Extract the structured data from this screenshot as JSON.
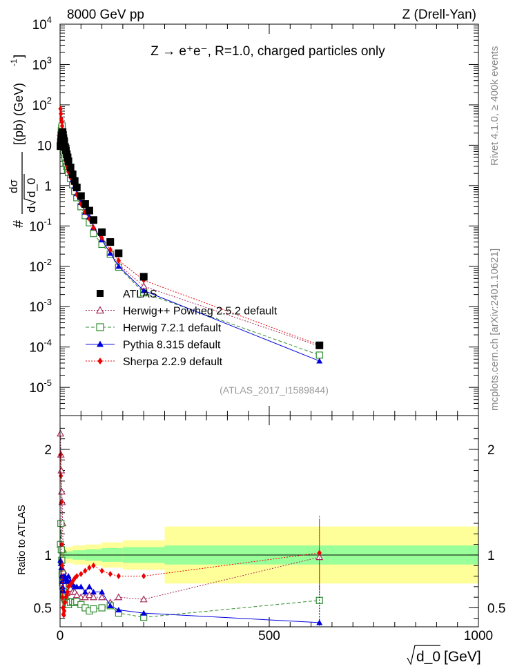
{
  "header": {
    "left": "8000 GeV pp",
    "right": "Z (Drell-Yan)",
    "process": "Z → e⁺e⁻, R=1.0, charged particles only",
    "analysis": "(ATLAS_2017_I1589844)"
  },
  "side": {
    "rivet": "Rivet 4.1.0, ≥ 400k events",
    "mcplots": "mcplots.cern.ch [arXiv:2401.10621]"
  },
  "colors": {
    "atlas": "#000000",
    "herwigpp": "#a52a5a",
    "herwig7": "#2e8b2e",
    "pythia": "#0000dd",
    "sherpa": "#ee0000",
    "band_inner": "#99ff99",
    "band_outer": "#ffff99"
  },
  "chart_data": [
    {
      "type": "scatter",
      "panel": "main",
      "title": "Z → e⁺e⁻, R=1.0, charged particles only",
      "xlabel": "√d_0 [GeV]",
      "ylabel": "dσ/d√d_0 [pb GeV⁻¹]",
      "ylabel_parts": {
        "hash": "#",
        "num": "dσ",
        "den_d": "d",
        "den_var": "d_0",
        "units": "[(pb) (GeV)",
        "exp": "-1",
        "close": "]"
      },
      "yscale": "log",
      "xlim": [
        0,
        1000
      ],
      "ylim": [
        2e-06,
        10000
      ],
      "ytick_labels": [
        {
          "base": "10",
          "exp": "4",
          "v": 4
        },
        {
          "base": "10",
          "exp": "3",
          "v": 3
        },
        {
          "base": "10",
          "exp": "2",
          "v": 2
        },
        {
          "base": "10",
          "exp": "",
          "v": 1
        },
        {
          "base": "1",
          "exp": "",
          "v": 0
        },
        {
          "base": "10",
          "exp": "-1",
          "v": -1
        },
        {
          "base": "10",
          "exp": "-2",
          "v": -2
        },
        {
          "base": "10",
          "exp": "-3",
          "v": -3
        },
        {
          "base": "10",
          "exp": "-4",
          "v": -4
        },
        {
          "base": "10",
          "exp": "-5",
          "v": -5
        }
      ],
      "x": [
        1,
        2,
        3,
        4,
        5,
        6,
        7,
        8,
        9,
        10,
        12,
        14,
        16,
        18,
        20,
        25,
        30,
        35,
        40,
        50,
        60,
        70,
        80,
        100,
        120,
        140,
        200,
        620
      ],
      "series": [
        {
          "name": "ATLAS",
          "key": "atlas",
          "marker": "square-filled",
          "values": [
            9.5,
            12,
            14,
            17,
            20,
            21,
            18,
            15,
            13,
            12,
            9,
            7.5,
            6,
            5,
            4,
            2.8,
            1.9,
            1.3,
            0.9,
            0.55,
            0.35,
            0.24,
            0.14,
            0.07,
            0.04,
            0.021,
            0.0055,
            0.00011
          ]
        },
        {
          "name": "Herwig++ Powheg 2.5.2 default",
          "key": "herwigpp",
          "marker": "triangle-open",
          "style": "dotted",
          "values": [
            20,
            21,
            24,
            26,
            29,
            23,
            15,
            10,
            8,
            7,
            5.5,
            4.5,
            3.7,
            3.2,
            2.7,
            1.8,
            1.2,
            0.85,
            0.62,
            0.37,
            0.22,
            0.15,
            0.085,
            0.045,
            0.022,
            0.011,
            0.0032,
            0.000105
          ]
        },
        {
          "name": "Herwig 7.2.1 default",
          "key": "herwig7",
          "marker": "square-open",
          "style": "dashed",
          "values": [
            10,
            18,
            23,
            27,
            30,
            22,
            14,
            9.5,
            7.5,
            6.5,
            4.8,
            3.6,
            3,
            2.5,
            2.1,
            1.5,
            1.05,
            0.72,
            0.5,
            0.3,
            0.18,
            0.12,
            0.065,
            0.035,
            0.02,
            0.0095,
            0.0022,
            6.3e-05
          ]
        },
        {
          "name": "Pythia 8.315 default",
          "key": "pythia",
          "marker": "triangle-filled",
          "style": "solid",
          "values": [
            9,
            11,
            13,
            13,
            15,
            14,
            12,
            11,
            10,
            9,
            7,
            5.8,
            4.5,
            3.8,
            3.2,
            2.1,
            1.4,
            0.95,
            0.63,
            0.38,
            0.22,
            0.17,
            0.092,
            0.045,
            0.021,
            0.01,
            0.0025,
            4.5e-05
          ]
        },
        {
          "name": "Sherpa 2.2.9 default",
          "key": "sherpa",
          "marker": "diamond-filled",
          "style": "dotted",
          "values": [
            80,
            60,
            45,
            38,
            30,
            22,
            15,
            10,
            8,
            6.5,
            5,
            4,
            3.2,
            2.7,
            2.2,
            1.6,
            1.2,
            0.85,
            0.6,
            0.35,
            0.22,
            0.15,
            0.09,
            0.05,
            0.026,
            0.014,
            0.0045,
            0.000112
          ]
        }
      ]
    },
    {
      "type": "scatter",
      "panel": "ratio",
      "ylabel": "Ratio to ATLAS",
      "xlabel": "√d_0 [GeV]",
      "xlabel_parts": {
        "var": "d_0",
        "units": "[GeV]"
      },
      "xlim": [
        0,
        1000
      ],
      "ylim": [
        0.32,
        2.32
      ],
      "xticks": [
        0,
        500,
        1000
      ],
      "xtick_labels": [
        "0",
        "500",
        "1000"
      ],
      "yticks": [
        0.5,
        1,
        2
      ],
      "ytick_labels": [
        "0.5",
        "1",
        "2"
      ],
      "band_edges": [
        0,
        30,
        60,
        100,
        150,
        250,
        1000
      ],
      "band_inner": [
        0.035,
        0.045,
        0.055,
        0.065,
        0.075,
        0.09
      ],
      "band_outer": [
        0.075,
        0.09,
        0.1,
        0.12,
        0.14,
        0.27
      ],
      "x": [
        1,
        2,
        3,
        4,
        5,
        6,
        7,
        8,
        9,
        10,
        12,
        14,
        16,
        18,
        20,
        25,
        30,
        35,
        40,
        50,
        60,
        70,
        80,
        100,
        120,
        140,
        200,
        620
      ],
      "series": [
        {
          "name": "Herwig++ Powheg 2.5.2 default",
          "key": "herwigpp",
          "values": [
            2.15,
            1.95,
            1.8,
            1.6,
            1.5,
            1.3,
            1.05,
            0.85,
            0.75,
            0.7,
            0.68,
            0.66,
            0.64,
            0.7,
            0.72,
            0.68,
            0.65,
            0.65,
            0.62,
            0.6,
            0.6,
            0.62,
            0.6,
            0.6,
            0.55,
            0.6,
            0.58,
            0.98
          ]
        },
        {
          "name": "Herwig 7.2.1 default",
          "key": "herwig7",
          "values": [
            1.1,
            1.3,
            1.05,
            0.95,
            0.82,
            0.74,
            0.7,
            0.65,
            0.62,
            0.6,
            0.58,
            0.56,
            0.55,
            0.54,
            0.53,
            0.55,
            0.56,
            0.55,
            0.56,
            0.53,
            0.5,
            0.47,
            0.49,
            0.5,
            0.52,
            0.45,
            0.41,
            0.57
          ]
        },
        {
          "name": "Pythia 8.315 default",
          "key": "pythia",
          "values": [
            0.95,
            0.92,
            0.88,
            0.8,
            0.75,
            0.7,
            0.67,
            0.66,
            0.8,
            0.78,
            0.8,
            0.77,
            0.75,
            0.76,
            0.8,
            0.75,
            0.72,
            0.7,
            0.7,
            0.7,
            0.65,
            0.7,
            0.65,
            0.65,
            0.52,
            0.48,
            0.45,
            0.36
          ]
        },
        {
          "name": "Sherpa 2.2.9 default",
          "key": "sherpa",
          "values": [
            1.95,
            1.75,
            1.5,
            1.1,
            0.9,
            0.6,
            0.5,
            0.44,
            0.43,
            0.47,
            0.55,
            0.6,
            0.62,
            0.65,
            0.7,
            0.72,
            0.75,
            0.78,
            0.8,
            0.82,
            0.85,
            0.88,
            0.9,
            0.85,
            0.82,
            0.8,
            0.8,
            1.02
          ]
        }
      ]
    }
  ]
}
